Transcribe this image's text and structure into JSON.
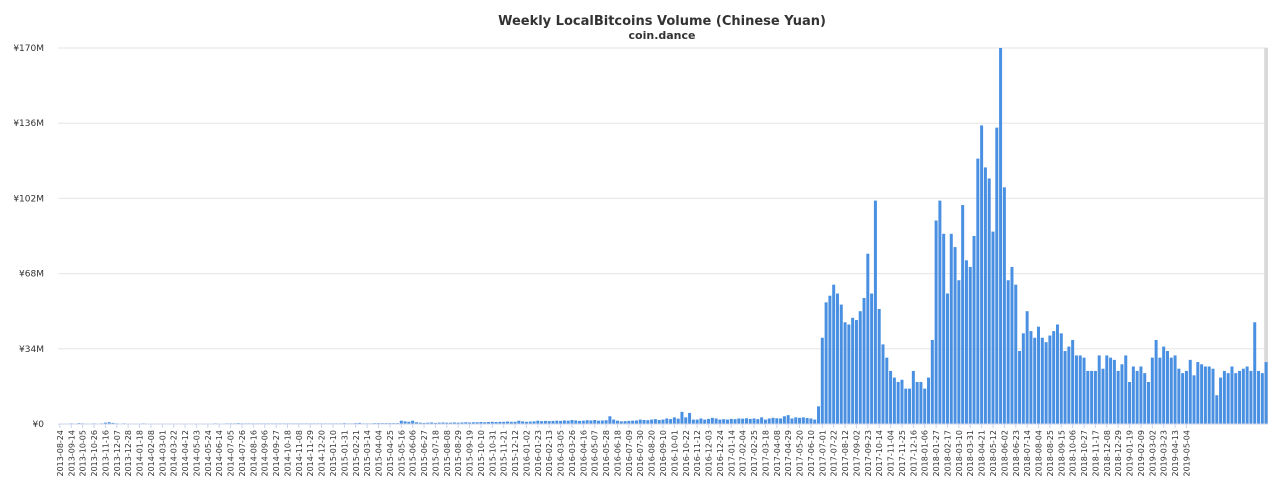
{
  "chart_data": {
    "type": "bar",
    "title": "Weekly LocalBitcoins Volume (Chinese Yuan)",
    "subtitle": "coin.dance",
    "xlabel": "",
    "ylabel": "",
    "ylim": [
      0,
      170
    ],
    "y_unit": "M CNY",
    "y_ticks": [
      "¥0",
      "¥34M",
      "¥68M",
      "¥102M",
      "¥136M",
      "¥170M"
    ],
    "y_tick_values": [
      0,
      34,
      68,
      102,
      136,
      170
    ],
    "grid": true,
    "legend": "none",
    "bar_color": "#4a90e2",
    "highlight_color": "#d9d9d9",
    "highlight_index": 318,
    "start_date": "2013-08-24",
    "x_tick_labels": [
      "2013-08-24",
      "2013-09-14",
      "2013-10-05",
      "2013-10-26",
      "2013-11-16",
      "2013-12-07",
      "2013-12-28",
      "2014-01-18",
      "2014-02-08",
      "2014-03-01",
      "2014-03-22",
      "2014-04-12",
      "2014-05-03",
      "2014-05-24",
      "2014-06-14",
      "2014-07-05",
      "2014-07-26",
      "2014-08-16",
      "2014-09-06",
      "2014-09-27",
      "2014-10-18",
      "2014-11-08",
      "2014-11-29",
      "2014-12-20",
      "2015-01-10",
      "2015-01-31",
      "2015-02-21",
      "2015-03-14",
      "2015-04-04",
      "2015-04-25",
      "2015-05-16",
      "2015-06-06",
      "2015-06-27",
      "2015-07-18",
      "2015-08-08",
      "2015-08-29",
      "2015-09-19",
      "2015-10-10",
      "2015-10-31",
      "2015-11-21",
      "2015-12-12",
      "2016-01-02",
      "2016-01-23",
      "2016-02-13",
      "2016-03-05",
      "2016-03-26",
      "2016-04-16",
      "2016-05-07",
      "2016-05-28",
      "2016-06-18",
      "2016-07-09",
      "2016-07-30",
      "2016-08-20",
      "2016-09-10",
      "2016-10-01",
      "2016-10-22",
      "2016-11-12",
      "2016-12-03",
      "2016-12-24",
      "2017-01-14",
      "2017-02-04",
      "2017-02-25",
      "2017-03-18",
      "2017-04-08",
      "2017-04-29",
      "2017-05-20",
      "2017-06-10",
      "2017-07-01",
      "2017-07-22",
      "2017-08-12",
      "2017-09-02",
      "2017-09-23",
      "2017-10-14",
      "2017-11-04",
      "2017-11-25",
      "2017-12-16",
      "2018-01-06",
      "2018-01-27",
      "2018-02-17",
      "2018-03-10",
      "2018-03-31",
      "2018-04-21",
      "2018-05-12",
      "2018-06-02",
      "2018-06-23",
      "2018-07-14",
      "2018-08-04",
      "2018-08-25",
      "2018-09-15",
      "2018-10-06",
      "2018-10-27",
      "2018-11-17",
      "2018-12-08",
      "2018-12-29",
      "2019-01-19",
      "2019-02-09",
      "2019-03-02",
      "2019-03-23",
      "2019-04-13",
      "2019-05-04"
    ],
    "values": [
      0.1,
      0.1,
      0.2,
      0.3,
      0.2,
      0.4,
      0.3,
      0.2,
      0.2,
      0.3,
      0.2,
      0.3,
      0.6,
      0.8,
      0.5,
      0.3,
      0.2,
      0.3,
      0.2,
      0.2,
      0.2,
      0.2,
      0.3,
      0.2,
      0.2,
      0.2,
      0.2,
      0.2,
      0.2,
      0.2,
      0.2,
      0.2,
      0.2,
      0.2,
      0.2,
      0.2,
      0.2,
      0.2,
      0.2,
      0.2,
      0.2,
      0.3,
      0.2,
      0.2,
      0.3,
      0.3,
      0.3,
      0.4,
      0.3,
      0.3,
      0.3,
      0.3,
      0.3,
      0.3,
      0.3,
      0.3,
      0.3,
      0.3,
      0.3,
      0.3,
      0.3,
      0.3,
      0.3,
      0.3,
      0.3,
      0.3,
      0.3,
      0.3,
      0.3,
      0.3,
      0.3,
      0.3,
      0.3,
      0.3,
      0.3,
      0.4,
      0.3,
      0.3,
      0.4,
      0.5,
      0.3,
      0.3,
      0.3,
      0.4,
      0.4,
      0.4,
      0.4,
      0.4,
      0.4,
      0.4,
      1.5,
      1.2,
      1.0,
      1.5,
      0.8,
      0.6,
      0.5,
      0.6,
      0.7,
      0.5,
      0.6,
      0.7,
      0.6,
      0.6,
      0.7,
      0.6,
      0.7,
      0.8,
      0.7,
      0.8,
      0.8,
      0.9,
      0.8,
      0.9,
      1.0,
      0.9,
      1.0,
      1.0,
      1.1,
      1.0,
      1.0,
      1.5,
      1.2,
      1.0,
      1.1,
      1.2,
      1.5,
      1.3,
      1.4,
      1.3,
      1.4,
      1.5,
      1.4,
      1.6,
      1.5,
      1.8,
      1.6,
      1.4,
      1.5,
      1.7,
      1.6,
      1.8,
      1.5,
      1.6,
      1.7,
      3.5,
      2.0,
      1.5,
      1.2,
      1.3,
      1.4,
      1.5,
      1.6,
      2.0,
      1.8,
      1.7,
      2.0,
      2.2,
      1.8,
      2.0,
      2.5,
      2.2,
      3.0,
      2.4,
      5.5,
      3.0,
      5.0,
      2.0,
      2.0,
      2.5,
      2.0,
      2.3,
      2.8,
      2.5,
      2.0,
      2.2,
      2.0,
      2.3,
      2.2,
      2.5,
      2.4,
      2.6,
      2.3,
      2.5,
      2.2,
      3.0,
      2.0,
      2.5,
      2.8,
      2.6,
      2.5,
      3.5,
      4.0,
      2.5,
      3.0,
      2.8,
      3.0,
      2.7,
      2.5,
      2.0,
      8.0,
      39,
      55,
      58,
      63,
      59,
      54,
      46,
      45,
      48,
      47,
      51,
      57,
      77,
      59,
      101,
      52,
      36,
      30,
      24,
      21,
      19,
      20,
      16,
      16,
      24,
      19,
      19,
      16,
      21,
      38,
      92,
      101,
      86,
      59,
      86,
      80,
      65,
      99,
      74,
      71,
      85,
      120,
      135,
      116,
      111,
      87,
      134,
      170,
      107,
      65,
      71,
      63,
      33,
      41,
      51,
      42,
      39,
      44,
      39,
      37,
      40,
      42,
      45,
      41,
      33,
      35,
      38,
      31,
      31,
      30,
      24,
      24,
      24,
      31,
      25,
      31,
      30,
      29,
      24,
      27,
      31,
      19,
      26,
      24,
      26,
      23,
      19,
      30,
      38,
      30,
      35,
      33,
      30,
      31,
      25,
      23,
      24,
      29,
      22,
      28,
      27,
      26,
      26,
      25,
      13,
      21,
      24,
      23,
      26,
      23,
      24,
      25,
      26,
      24,
      46,
      24,
      23,
      28
    ]
  }
}
